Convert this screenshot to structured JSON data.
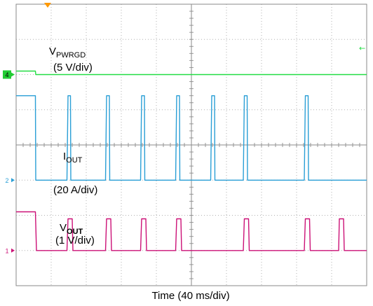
{
  "chart_data": {
    "type": "line",
    "title": "",
    "xlabel": "Time (40 ms/div)",
    "grid": true,
    "divisions": {
      "x": 10,
      "y": 8
    },
    "trigger_marker": "orange-triangle-top",
    "channels": [
      {
        "id": "ch4",
        "marker": "4",
        "color": "#22dd44",
        "marker_color": "#22cc33",
        "label_main": "V",
        "label_sub": "PWRGD",
        "label_scale": "(5 V/div)",
        "ground_div": 2.0,
        "offscale_right_arrow": true,
        "points": [
          [
            0,
            1.9
          ],
          [
            0.55,
            1.9
          ],
          [
            0.56,
            2.0
          ],
          [
            10,
            2.0
          ]
        ]
      },
      {
        "id": "ch2",
        "marker": "2",
        "color": "#2a9fd6",
        "marker_color": "#2a9fd6",
        "label_main": "I",
        "label_sub": "OUT",
        "label_scale": "(20 A/div)",
        "ground_div": 5.0,
        "offscale_right_arrow": false,
        "points": [
          [
            0,
            2.6
          ],
          [
            0.55,
            2.6
          ],
          [
            0.56,
            5.0
          ],
          [
            1.45,
            5.0
          ],
          [
            1.48,
            2.6
          ],
          [
            1.55,
            2.6
          ],
          [
            1.56,
            5.0
          ],
          [
            2.55,
            5.0
          ],
          [
            2.58,
            2.6
          ],
          [
            2.66,
            2.6
          ],
          [
            2.67,
            5.0
          ],
          [
            3.55,
            5.0
          ],
          [
            3.58,
            2.6
          ],
          [
            3.66,
            2.6
          ],
          [
            3.67,
            5.0
          ],
          [
            4.55,
            5.0
          ],
          [
            4.58,
            2.6
          ],
          [
            4.66,
            2.6
          ],
          [
            4.67,
            5.0
          ],
          [
            5.55,
            5.0
          ],
          [
            5.58,
            2.6
          ],
          [
            5.66,
            2.6
          ],
          [
            5.67,
            5.0
          ],
          [
            6.48,
            5.0
          ],
          [
            6.51,
            2.6
          ],
          [
            6.59,
            2.6
          ],
          [
            6.6,
            5.0
          ],
          [
            8.22,
            5.0
          ],
          [
            8.25,
            2.6
          ],
          [
            8.33,
            2.6
          ],
          [
            8.34,
            5.0
          ],
          [
            10,
            5.0
          ]
        ]
      },
      {
        "id": "ch1",
        "marker": "1",
        "color": "#cc1177",
        "marker_color": "#cc1177",
        "label_main": "V",
        "label_sub": "OUT",
        "label_scale": "(1 V/div)",
        "ground_div": 7.0,
        "offscale_right_arrow": false,
        "points": [
          [
            0,
            5.9
          ],
          [
            0.55,
            5.9
          ],
          [
            0.58,
            7.0
          ],
          [
            1.45,
            7.0
          ],
          [
            1.48,
            6.1
          ],
          [
            1.6,
            6.1
          ],
          [
            1.62,
            7.0
          ],
          [
            2.55,
            7.0
          ],
          [
            2.58,
            6.1
          ],
          [
            2.7,
            6.1
          ],
          [
            2.72,
            7.0
          ],
          [
            3.55,
            7.0
          ],
          [
            3.58,
            6.1
          ],
          [
            3.7,
            6.1
          ],
          [
            3.72,
            7.0
          ],
          [
            4.55,
            7.0
          ],
          [
            4.58,
            6.1
          ],
          [
            4.7,
            6.1
          ],
          [
            4.72,
            7.0
          ],
          [
            6.48,
            7.0
          ],
          [
            6.51,
            6.1
          ],
          [
            6.63,
            6.1
          ],
          [
            6.65,
            7.0
          ],
          [
            8.22,
            7.0
          ],
          [
            8.25,
            6.1
          ],
          [
            8.37,
            6.1
          ],
          [
            8.39,
            7.0
          ],
          [
            9.2,
            7.0
          ],
          [
            9.22,
            6.1
          ],
          [
            9.34,
            6.1
          ],
          [
            9.36,
            7.0
          ],
          [
            10,
            7.0
          ]
        ]
      }
    ]
  }
}
